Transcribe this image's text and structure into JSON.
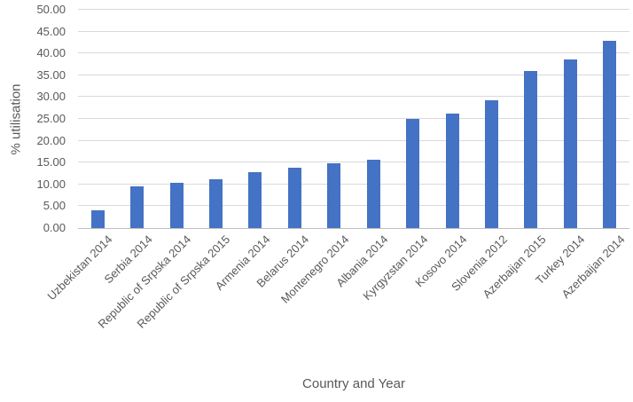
{
  "chart_data": {
    "type": "bar",
    "title": "",
    "xlabel": "Country and Year",
    "ylabel": "% utilisation",
    "ylim": [
      0,
      50
    ],
    "ytick_step": 5,
    "ytick_labels": [
      "0.00",
      "5.00",
      "10.00",
      "15.00",
      "20.00",
      "25.00",
      "30.00",
      "35.00",
      "40.00",
      "45.00",
      "50.00"
    ],
    "categories": [
      "Uzbekistan 2014",
      "Serbia 2014",
      "Republic of Srpska 2014",
      "Republic of Srpska 2015",
      "Armenia 2014",
      "Belarus 2014",
      "Montenegro 2014",
      "Albania 2014",
      "Kyrgyzstan 2014",
      "Kosovo 2014",
      "Slovenia 2012",
      "Azerbaijan 2015",
      "Turkey 2014",
      "Azerbaijan 2014"
    ],
    "values": [
      4.1,
      9.6,
      10.4,
      11.1,
      12.8,
      13.8,
      14.8,
      15.7,
      25.0,
      26.3,
      29.3,
      36.0,
      38.7,
      42.8
    ],
    "grid": true,
    "legend": false,
    "colors": {
      "bar": "#4472C4",
      "gridline": "#D9D9D9",
      "axis_line": "#BFBFBF",
      "text": "#595959",
      "background": "#FFFFFF"
    }
  }
}
